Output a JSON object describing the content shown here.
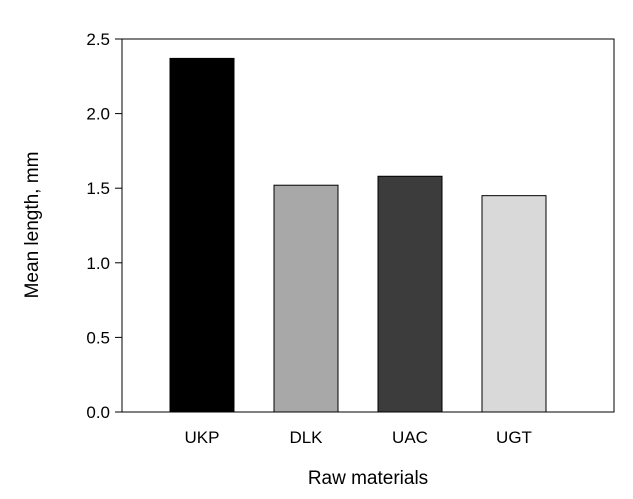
{
  "chart_data": {
    "type": "bar",
    "categories": [
      "UKP",
      "DLK",
      "UAC",
      "UGT"
    ],
    "values": [
      2.37,
      1.52,
      1.58,
      1.45
    ],
    "colors": [
      "#000000",
      "#a8a8a8",
      "#3c3c3c",
      "#d9d9d9"
    ],
    "xlabel": "Raw materials",
    "ylabel": "Mean length, mm",
    "ylim": [
      0,
      2.5
    ],
    "yticks": [
      "0.0",
      "0.5",
      "1.0",
      "1.5",
      "2.0",
      "2.5"
    ],
    "grid": false,
    "legend": "none"
  }
}
